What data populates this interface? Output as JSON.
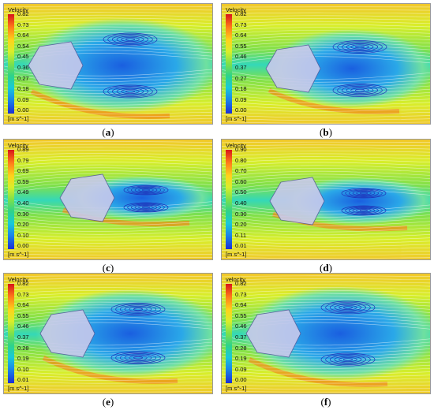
{
  "panels": [
    {
      "caption_label": "a",
      "colorbar_title": "Velocity",
      "unit": "[m s^-1]",
      "ticks": [
        "0.82",
        "0.73",
        "0.64",
        "0.54",
        "0.45",
        "0.36",
        "0.27",
        "0.18",
        "0.09",
        "0.00"
      ]
    },
    {
      "caption_label": "b",
      "colorbar_title": "Velocity",
      "unit": "[m s^-1]",
      "ticks": [
        "0.82",
        "0.73",
        "0.64",
        "0.55",
        "0.46",
        "0.37",
        "0.27",
        "0.18",
        "0.09",
        "0.00"
      ]
    },
    {
      "caption_label": "c",
      "colorbar_title": "Velocity",
      "unit": "[m s^-1]",
      "ticks": [
        "0.89",
        "0.79",
        "0.69",
        "0.59",
        "0.49",
        "0.40",
        "0.30",
        "0.20",
        "0.10",
        "0.00"
      ]
    },
    {
      "caption_label": "d",
      "colorbar_title": "Velocity",
      "unit": "[m s^-1]",
      "ticks": [
        "0.90",
        "0.80",
        "0.70",
        "0.60",
        "0.50",
        "0.40",
        "0.30",
        "0.20",
        "0.11",
        "0.01"
      ]
    },
    {
      "caption_label": "e",
      "colorbar_title": "Velocity",
      "unit": "[m s^-1]",
      "ticks": [
        "0.82",
        "0.73",
        "0.64",
        "0.55",
        "0.46",
        "0.37",
        "0.28",
        "0.19",
        "0.10",
        "0.01"
      ]
    },
    {
      "caption_label": "f",
      "colorbar_title": "velocity",
      "unit": "[m s^-1]",
      "ticks": [
        "0.82",
        "0.73",
        "0.64",
        "0.55",
        "0.46",
        "0.37",
        "0.28",
        "0.19",
        "0.09",
        "0.00"
      ]
    }
  ],
  "colors": {
    "high": "#d9141a",
    "mid": "#7ee04a",
    "low": "#1b2fd6",
    "body": "#c8c9ec"
  }
}
